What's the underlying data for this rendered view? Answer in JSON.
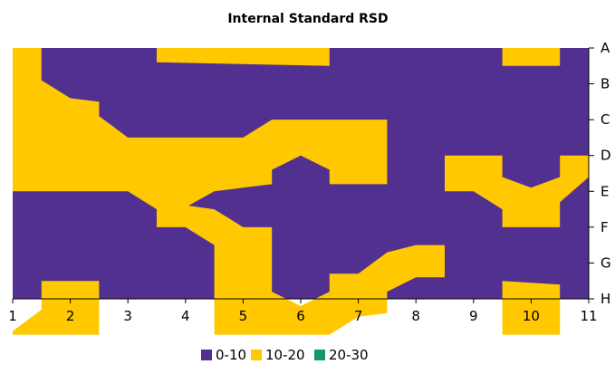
{
  "chart_data": {
    "type": "contour",
    "title": "Internal Standard RSD",
    "xlabel": "",
    "ylabel": "",
    "x_ticks": [
      "1",
      "2",
      "3",
      "4",
      "5",
      "6",
      "7",
      "8",
      "9",
      "10",
      "11"
    ],
    "y_ticks": [
      "A",
      "B",
      "C",
      "D",
      "E",
      "F",
      "G",
      "H"
    ],
    "xlim": [
      1,
      11
    ],
    "ylim_rows": [
      "A",
      "H"
    ],
    "grid": false,
    "legend_position": "bottom",
    "series": [
      {
        "name": "0-10",
        "color": "#52308f"
      },
      {
        "name": "10-20",
        "color": "#ffc800"
      },
      {
        "name": "20-30",
        "color": "#129a63"
      }
    ],
    "band_polygons": [
      {
        "series": "10-20",
        "points": [
          [
            1,
            1
          ],
          [
            1.5,
            1
          ],
          [
            1.5,
            1.9
          ],
          [
            2,
            2.4
          ],
          [
            2.5,
            2.5
          ],
          [
            2.5,
            2.9
          ],
          [
            3,
            3.5
          ],
          [
            5,
            3.5
          ],
          [
            5.5,
            3
          ],
          [
            7.5,
            3
          ],
          [
            7.5,
            4.8
          ],
          [
            6.5,
            4.8
          ],
          [
            6.5,
            4.4
          ],
          [
            6,
            4
          ],
          [
            5.5,
            4.4
          ],
          [
            5.5,
            4.8
          ],
          [
            5,
            4.9
          ],
          [
            4.5,
            5
          ],
          [
            4.05,
            5.4
          ],
          [
            4.5,
            5.5
          ],
          [
            5,
            6
          ],
          [
            5.5,
            6
          ],
          [
            5.5,
            7.8
          ],
          [
            6,
            8.2
          ],
          [
            6.5,
            7.8
          ],
          [
            6.5,
            7.3
          ],
          [
            7,
            7.3
          ],
          [
            7.5,
            6.7
          ],
          [
            8,
            6.5
          ],
          [
            8.5,
            6.5
          ],
          [
            8.5,
            7.4
          ],
          [
            8,
            7.4
          ],
          [
            7.5,
            7.8
          ],
          [
            7.5,
            8.4
          ],
          [
            7,
            8.5
          ],
          [
            6.5,
            9
          ],
          [
            4.5,
            9
          ],
          [
            4.5,
            6.5
          ],
          [
            4,
            6
          ],
          [
            3.5,
            6
          ],
          [
            3.5,
            5.5
          ],
          [
            3,
            5
          ],
          [
            1,
            5
          ]
        ]
      },
      {
        "series": "10-20",
        "points": [
          [
            3.5,
            1
          ],
          [
            6.5,
            1
          ],
          [
            6.5,
            1.5
          ],
          [
            3.5,
            1.4
          ]
        ]
      },
      {
        "series": "10-20",
        "points": [
          [
            9.5,
            1
          ],
          [
            10.5,
            1
          ],
          [
            10.5,
            1.5
          ],
          [
            9.5,
            1.5
          ]
        ]
      },
      {
        "series": "10-20",
        "points": [
          [
            8.5,
            4
          ],
          [
            9.5,
            4
          ],
          [
            9.5,
            4.6
          ],
          [
            10,
            4.9
          ],
          [
            10.5,
            4.6
          ],
          [
            10.5,
            4
          ],
          [
            11,
            4
          ],
          [
            11,
            4.6
          ],
          [
            10.5,
            5.3
          ],
          [
            10.5,
            6
          ],
          [
            9.5,
            6
          ],
          [
            9.5,
            5.5
          ],
          [
            9,
            5
          ],
          [
            8.5,
            5
          ]
        ]
      },
      {
        "series": "10-20",
        "points": [
          [
            1,
            8.9
          ],
          [
            1.5,
            8.3
          ],
          [
            1.5,
            7.5
          ],
          [
            2.5,
            7.5
          ],
          [
            2.5,
            9
          ],
          [
            1,
            9
          ]
        ]
      },
      {
        "series": "10-20",
        "points": [
          [
            9.5,
            7.5
          ],
          [
            10.5,
            7.6
          ],
          [
            10.5,
            9
          ],
          [
            9.5,
            9
          ]
        ]
      }
    ]
  }
}
